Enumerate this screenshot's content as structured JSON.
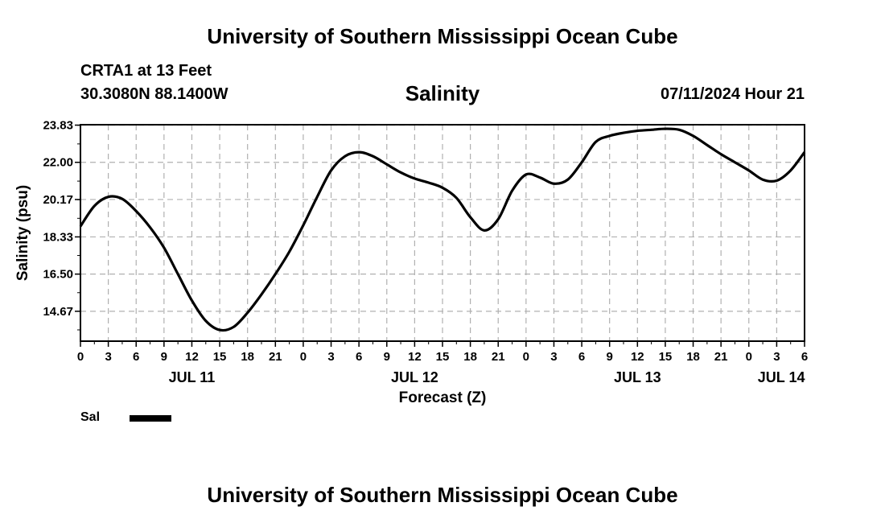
{
  "header": {
    "main_title": "University of Southern Mississippi Ocean Cube",
    "station": "CRTA1 at 13 Feet",
    "coords": "30.3080N  88.1400W",
    "chart_title": "Salinity",
    "datetime": "07/11/2024 Hour 21"
  },
  "footer": {
    "title": "University of Southern Mississippi Ocean Cube"
  },
  "legend": {
    "label": "Sal",
    "color": "#000000"
  },
  "chart_data": {
    "type": "line",
    "title": "Salinity",
    "xlabel": "Forecast (Z)",
    "ylabel": "Salinity (psu)",
    "xlim": [
      0,
      78
    ],
    "ylim": [
      13.2,
      23.85
    ],
    "grid": true,
    "legend_position": "below-left",
    "y_ticks": [
      14.67,
      16.5,
      18.33,
      20.17,
      22.0,
      23.83
    ],
    "y_tick_labels": [
      "14.67",
      "16.50",
      "18.33",
      "20.17",
      "22.00",
      "23.83"
    ],
    "x_ticks": [
      0,
      3,
      6,
      9,
      12,
      15,
      18,
      21,
      24,
      27,
      30,
      33,
      36,
      39,
      42,
      45,
      48,
      51,
      54,
      57,
      60,
      63,
      66,
      69,
      72,
      75,
      78
    ],
    "x_tick_labels": [
      "0",
      "3",
      "6",
      "9",
      "12",
      "15",
      "18",
      "21",
      "0",
      "3",
      "6",
      "9",
      "12",
      "15",
      "18",
      "21",
      "0",
      "3",
      "6",
      "9",
      "12",
      "15",
      "18",
      "21",
      "0",
      "3",
      "6"
    ],
    "date_labels": [
      {
        "x": 12,
        "label": "JUL 11"
      },
      {
        "x": 36,
        "label": "JUL 12"
      },
      {
        "x": 60,
        "label": "JUL 13"
      },
      {
        "x": 75.5,
        "label": "JUL 14"
      }
    ],
    "series": [
      {
        "name": "Sal",
        "color": "#000000",
        "x": [
          0,
          1.5,
          3,
          4.5,
          6,
          7.5,
          9,
          10.5,
          12,
          13.5,
          15,
          16.5,
          18,
          19.5,
          21,
          22.5,
          24,
          25.5,
          27,
          28.5,
          30,
          31.5,
          33,
          34.5,
          36,
          37.5,
          39,
          40.5,
          42,
          43.5,
          45,
          46.5,
          48,
          49.5,
          51,
          52.5,
          54,
          55.5,
          57,
          58.5,
          60,
          61.5,
          63,
          64.5,
          66,
          67.5,
          69,
          70.5,
          72,
          73.5,
          75,
          76.5,
          78
        ],
        "y": [
          18.85,
          19.85,
          20.3,
          20.2,
          19.6,
          18.8,
          17.8,
          16.5,
          15.2,
          14.2,
          13.75,
          13.9,
          14.6,
          15.5,
          16.5,
          17.6,
          18.9,
          20.3,
          21.6,
          22.3,
          22.5,
          22.3,
          21.9,
          21.5,
          21.2,
          21.0,
          20.75,
          20.25,
          19.3,
          18.65,
          19.2,
          20.6,
          21.4,
          21.25,
          20.95,
          21.15,
          22.0,
          23.0,
          23.3,
          23.45,
          23.55,
          23.6,
          23.65,
          23.6,
          23.3,
          22.85,
          22.4,
          22.0,
          21.6,
          21.15,
          21.1,
          21.6,
          22.5
        ]
      }
    ]
  }
}
